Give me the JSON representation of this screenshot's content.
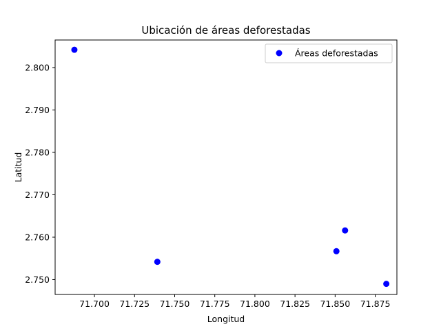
{
  "chart_data": {
    "type": "scatter",
    "title": "Ubicación de áreas deforestadas",
    "xlabel": "Longitud",
    "ylabel": "Latitud",
    "xlim": [
      71.6755,
      71.8885
    ],
    "ylim": [
      2.7465,
      2.8065
    ],
    "x_ticks": [
      71.7,
      71.725,
      71.75,
      71.775,
      71.8,
      71.825,
      71.85,
      71.875
    ],
    "x_tick_labels": [
      "71.700",
      "71.725",
      "71.750",
      "71.775",
      "71.800",
      "71.825",
      "71.850",
      "71.875"
    ],
    "y_ticks": [
      2.75,
      2.76,
      2.77,
      2.78,
      2.79,
      2.8
    ],
    "y_tick_labels": [
      "2.750",
      "2.760",
      "2.770",
      "2.780",
      "2.790",
      "2.800"
    ],
    "grid": false,
    "legend_position": "top-right",
    "series": [
      {
        "name": "Áreas deforestadas",
        "color": "#0000ff",
        "marker": "circle",
        "points": [
          {
            "x": 71.6875,
            "y": 2.8042
          },
          {
            "x": 71.7392,
            "y": 2.7542
          },
          {
            "x": 71.8508,
            "y": 2.7567
          },
          {
            "x": 71.8562,
            "y": 2.7616
          },
          {
            "x": 71.8819,
            "y": 2.749
          }
        ]
      }
    ]
  }
}
